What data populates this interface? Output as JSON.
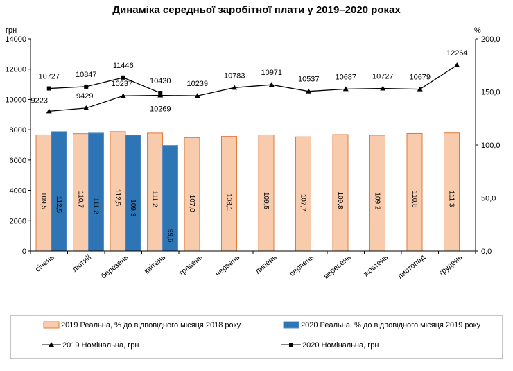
{
  "chart_data": {
    "type": "bar+line",
    "title": "Динаміка середньої заробітної плати у 2019–2020 роках",
    "left_axis_unit": "грн",
    "right_axis_unit": "%",
    "left_ylim": [
      0,
      14000
    ],
    "left_ticks": [
      "0",
      "2000",
      "4000",
      "6000",
      "8000",
      "10000",
      "12000",
      "14000"
    ],
    "right_ylim": [
      0,
      200
    ],
    "right_ticks": [
      "0,0",
      "50,0",
      "100,0",
      "150,0",
      "200,0"
    ],
    "categories": [
      "січень",
      "лютий",
      "березень",
      "квітень",
      "травень",
      "червень",
      "липень",
      "серпень",
      "вересень",
      "жовтень",
      "листопад",
      "грудень"
    ],
    "grid": false,
    "legend_position": "bottom",
    "bar_series": [
      {
        "name": "2019 Реальна, % до відповідного місяця 2018 року",
        "axis": "right",
        "color": "#F8CBAD",
        "edge": "#E07B39",
        "values": [
          109.5,
          110.7,
          112.5,
          111.2,
          107.0,
          108.1,
          109.5,
          107.7,
          109.8,
          109.2,
          110.8,
          111.3
        ],
        "labels": [
          "109,5",
          "110,7",
          "112,5",
          "111,2",
          "107,0",
          "108,1",
          "109,5",
          "107,7",
          "109,8",
          "109,2",
          "110,8",
          "111,3"
        ]
      },
      {
        "name": "2020 Реальна, % до відповідного місяця 2019 року",
        "axis": "right",
        "color": "#2E75B6",
        "edge": "#5B8DC4",
        "values": [
          112.5,
          111.2,
          109.3,
          99.6,
          null,
          null,
          null,
          null,
          null,
          null,
          null,
          null
        ],
        "labels": [
          "112,5",
          "111,2",
          "109,3",
          "99,6",
          null,
          null,
          null,
          null,
          null,
          null,
          null,
          null
        ]
      }
    ],
    "line_series": [
      {
        "name": "2019 Номінальна, грн",
        "axis": "left",
        "marker": "triangle",
        "values": [
          9223,
          9429,
          10237,
          10269,
          10239,
          10783,
          10971,
          10537,
          10687,
          10727,
          10679,
          12264
        ]
      },
      {
        "name": "2020 Номінальна, грн",
        "axis": "left",
        "marker": "square",
        "values": [
          10727,
          10847,
          11446,
          10430,
          null,
          null,
          null,
          null,
          null,
          null,
          null,
          null
        ]
      }
    ]
  }
}
